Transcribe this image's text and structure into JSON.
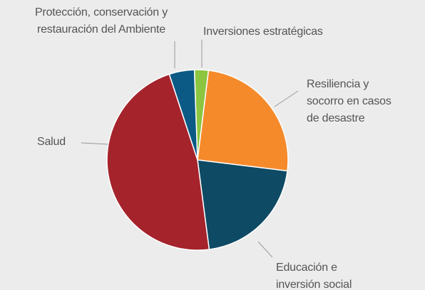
{
  "chart_data": {
    "type": "pie",
    "categories": [
      "Inversiones estratégicas",
      "Resiliencia y\nsocorro en casos\nde desastre",
      "Educación e\ninversión social",
      "Salud",
      "Protección, conservación y\nrestauración del Ambiente"
    ],
    "values": [
      2.5,
      25,
      21,
      47,
      4.5
    ],
    "colors": [
      "#8cc540",
      "#f58a2b",
      "#0e4a64",
      "#a5232b",
      "#0a5a85"
    ]
  }
}
